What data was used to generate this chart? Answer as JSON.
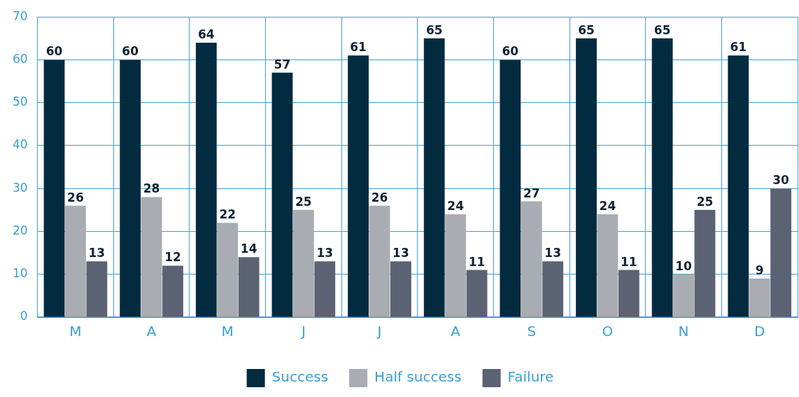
{
  "chart_data": {
    "type": "bar",
    "categories": [
      "M",
      "A",
      "M",
      "J",
      "J",
      "A",
      "S",
      "O",
      "N",
      "D"
    ],
    "series": [
      {
        "name": "Success",
        "color": "#022b40",
        "values": [
          60,
          60,
          64,
          57,
          61,
          65,
          60,
          65,
          65,
          61
        ]
      },
      {
        "name": "Half success",
        "color": "#a9acb2",
        "values": [
          26,
          28,
          22,
          25,
          26,
          24,
          27,
          24,
          10,
          9
        ]
      },
      {
        "name": "Failure",
        "color": "#5b6273",
        "values": [
          13,
          12,
          14,
          13,
          13,
          11,
          13,
          11,
          25,
          30
        ]
      }
    ],
    "ylim": [
      0,
      70
    ],
    "yticks": [
      0,
      10,
      20,
      30,
      40,
      50,
      60,
      70
    ],
    "grid": true,
    "legend": "bottom",
    "data_labels": true
  }
}
